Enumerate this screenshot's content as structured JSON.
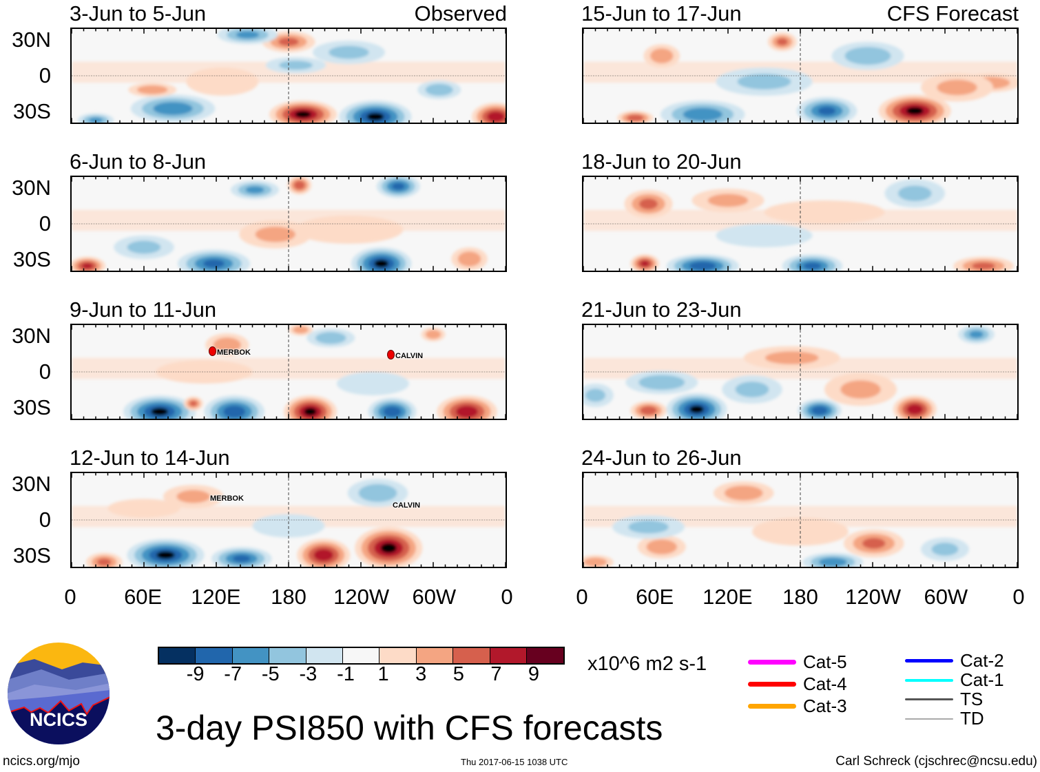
{
  "panels": [
    {
      "title": "3-Jun to 5-Jun",
      "tag": "Observed"
    },
    {
      "title": "6-Jun to 8-Jun",
      "tag": ""
    },
    {
      "title": "9-Jun to 11-Jun",
      "tag": ""
    },
    {
      "title": "12-Jun to 14-Jun",
      "tag": ""
    },
    {
      "title": "15-Jun to 17-Jun",
      "tag": "CFS Forecast"
    },
    {
      "title": "18-Jun to 20-Jun",
      "tag": ""
    },
    {
      "title": "21-Jun to 23-Jun",
      "tag": ""
    },
    {
      "title": "24-Jun to 26-Jun",
      "tag": ""
    }
  ],
  "lat_labels": [
    "30N",
    "0",
    "30S"
  ],
  "lon_labels": [
    "0",
    "60E",
    "120E",
    "180",
    "120W",
    "60W",
    "0"
  ],
  "storms": {
    "p3_merbok": "MERBOK",
    "p3_calvin": "CALVIN",
    "p4_merbok": "MERBOK",
    "p4_calvin": "CALVIN"
  },
  "colorbar": {
    "labels": [
      "-9",
      "-7",
      "-5",
      "-3",
      "-1",
      "1",
      "3",
      "5",
      "7",
      "9"
    ],
    "colors": [
      "#053061",
      "#2166ac",
      "#4393c3",
      "#92c5de",
      "#d1e5f0",
      "#f7f7f7",
      "#fddbc7",
      "#f4a582",
      "#d6604d",
      "#b2182b",
      "#67001f"
    ],
    "units": "x10^6 m2 s-1"
  },
  "title": "3-day PSI850 with CFS forecasts",
  "legend": [
    {
      "label": "Cat-5",
      "color": "#ff00ff"
    },
    {
      "label": "Cat-4",
      "color": "#ff0000"
    },
    {
      "label": "Cat-3",
      "color": "#ffa500"
    },
    {
      "label": "Cat-2",
      "color": "#0000ff"
    },
    {
      "label": "Cat-1",
      "color": "#00ffff"
    },
    {
      "label": "TS",
      "color": "#555555"
    },
    {
      "label": "TD",
      "color": "#aaaaaa"
    }
  ],
  "logo": {
    "text": "NCICS"
  },
  "footer": {
    "left": "ncics.org/mjo",
    "center": "Thu 2017-06-15 1038 UTC",
    "right": "Carl Schreck (cjschrec@ncsu.edu)"
  }
}
